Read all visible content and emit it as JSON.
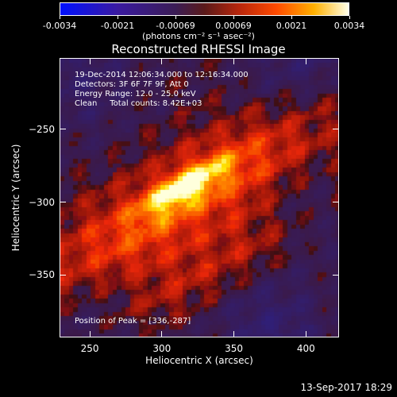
{
  "colorbar": {
    "labels": [
      "-0.0034",
      "-0.0021",
      "-0.00069",
      "0.00069",
      "0.0021",
      "0.0034"
    ],
    "units": "(photons cm⁻² s⁻¹ asec⁻²)"
  },
  "title": "Reconstructed RHESSI Image",
  "info": {
    "line1": "19-Dec-2014 12:06:34.000 to 12:16:34.000",
    "line2": "Detectors: 3F 6F 7F 9F, Att 0",
    "line3": "Energy Range: 12.0 - 25.0 keV",
    "line4": "Clean     Total counts: 8.42E+03",
    "peak": "Position of Peak = [336,-287]"
  },
  "chart_data": {
    "type": "heatmap",
    "title": "Reconstructed RHESSI Image",
    "xlabel": "Heliocentric X (arcsec)",
    "ylabel": "Heliocentric Y (arcsec)",
    "xlim": [
      229,
      423
    ],
    "ylim": [
      -393,
      -201
    ],
    "xticks": [
      250,
      300,
      350,
      400
    ],
    "yticks": [
      -250,
      -300,
      -350
    ],
    "colorbar_range": [
      -0.0034,
      0.0034
    ],
    "colormap": "hot with blue/purple negatives",
    "peak_position": [
      336,
      -287
    ]
  },
  "footer": {
    "date": "13-Sep-2017 18:29"
  }
}
